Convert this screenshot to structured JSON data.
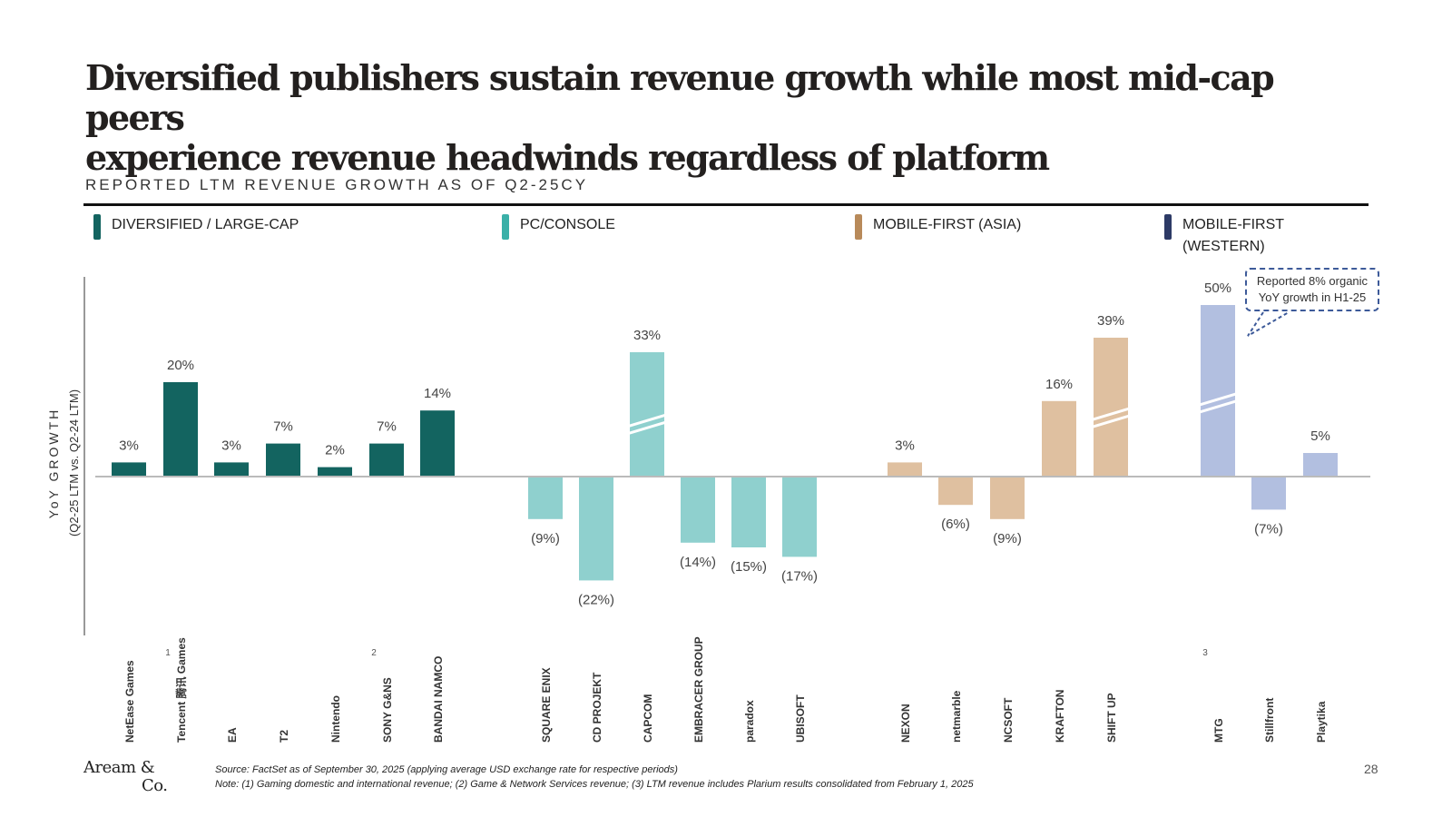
{
  "title": {
    "line1": "Diversified publishers sustain revenue growth while most mid-cap peers",
    "line2": "experience revenue headwinds regardless of platform"
  },
  "subtitle": "REPORTED LTM REVENUE GROWTH AS OF Q2-25CY",
  "legend": [
    {
      "label": "DIVERSIFIED / LARGE-CAP",
      "color": "#136460"
    },
    {
      "label": "PC/CONSOLE",
      "color": "#8fd0ce"
    },
    {
      "label": "MOBILE-FIRST (ASIA)",
      "color": "#dfc0a0"
    },
    {
      "label": "MOBILE-FIRST",
      "label2": "(WESTERN)",
      "color": "#b2bfe0"
    }
  ],
  "legend_swatch_colors": [
    "#136460",
    "#3ab0a8",
    "#b88a5a",
    "#2d3a66"
  ],
  "callout": {
    "line1": "Reported 8% organic",
    "line2": "YoY growth in H1-25"
  },
  "chart_data": {
    "type": "bar",
    "ylabel": "YoY GROWTH",
    "ylabel2": "(Q2-25 LTM vs. Q2-24 LTM)",
    "ylim": [
      -30,
      50
    ],
    "truncated_bars": [
      "CAPCOM",
      "SHIFT UP",
      "MTG"
    ],
    "groups": [
      {
        "name": "DIVERSIFIED / LARGE-CAP",
        "color": "#136460",
        "companies": [
          {
            "name": "NetEase Games",
            "value": 3,
            "label": "3%"
          },
          {
            "name": "Tencent 腾讯 Games",
            "value": 20,
            "label": "20%",
            "footnote": "1"
          },
          {
            "name": "EA",
            "value": 3,
            "label": "3%"
          },
          {
            "name": "T2",
            "value": 7,
            "label": "7%"
          },
          {
            "name": "Nintendo",
            "value": 2,
            "label": "2%"
          },
          {
            "name": "SONY G&NS",
            "value": 7,
            "label": "7%",
            "footnote": "2"
          },
          {
            "name": "BANDAI NAMCO",
            "value": 14,
            "label": "14%"
          }
        ]
      },
      {
        "name": "PC/CONSOLE",
        "color": "#8fd0ce",
        "companies": [
          {
            "name": "SQUARE ENIX",
            "value": -9,
            "label": "(9%)"
          },
          {
            "name": "CD PROJEKT",
            "value": -22,
            "label": "(22%)"
          },
          {
            "name": "CAPCOM",
            "value": 33,
            "label": "33%"
          },
          {
            "name": "EMBRACER GROUP",
            "value": -14,
            "label": "(14%)"
          },
          {
            "name": "paradox",
            "value": -15,
            "label": "(15%)"
          },
          {
            "name": "UBISOFT",
            "value": -17,
            "label": "(17%)"
          }
        ]
      },
      {
        "name": "MOBILE-FIRST (ASIA)",
        "color": "#dfc0a0",
        "companies": [
          {
            "name": "NEXON",
            "value": 3,
            "label": "3%"
          },
          {
            "name": "netmarble",
            "value": -6,
            "label": "(6%)"
          },
          {
            "name": "NCSOFT",
            "value": -9,
            "label": "(9%)"
          },
          {
            "name": "KRAFTON",
            "value": 16,
            "label": "16%"
          },
          {
            "name": "SHIFT UP",
            "value": 39,
            "label": "39%"
          }
        ]
      },
      {
        "name": "MOBILE-FIRST (WESTERN)",
        "color": "#b2bfe0",
        "companies": [
          {
            "name": "MTG",
            "value": 50,
            "label": "50%",
            "footnote": "3"
          },
          {
            "name": "Stillfront",
            "value": -7,
            "label": "(7%)"
          },
          {
            "name": "Playtika",
            "value": 5,
            "label": "5%"
          }
        ]
      }
    ]
  },
  "footer": {
    "logo_line1": "Aream &",
    "logo_line2": "Co.",
    "source": "Source: FactSet as of September 30, 2025 (applying average USD exchange rate for respective periods)",
    "note": "Note: (1) Gaming domestic and international revenue; (2) Game & Network Services revenue; (3) LTM revenue includes Plarium results consolidated from February 1, 2025",
    "page": "28"
  }
}
